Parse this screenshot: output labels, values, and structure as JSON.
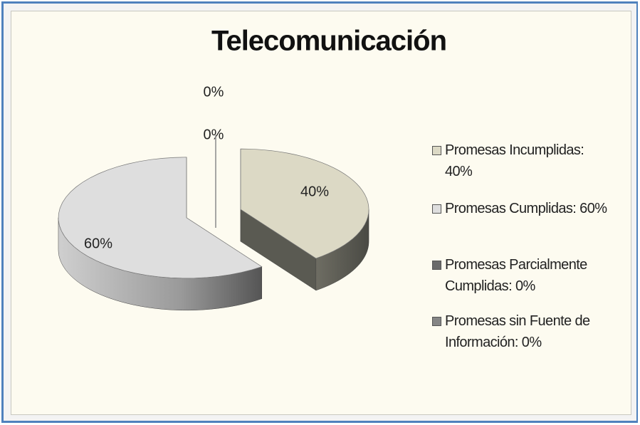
{
  "chart_data": {
    "type": "pie3d",
    "title": "Telecomunicación",
    "categories": [
      "Promesas Incumplidas",
      "Promesas Cumplidas",
      "Promesas Parcialmente Cumplidas",
      "Promesas sin Fuente de Información"
    ],
    "values": [
      40,
      60,
      0,
      0
    ],
    "value_labels": [
      "40%",
      "60%",
      "0%",
      "0%"
    ],
    "legend": [
      "Promesas Incumplidas: 40%",
      "Promesas Cumplidas: 60%",
      "Promesas Parcialmente Cumplidas: 0%",
      "Promesas sin Fuente de Información: 0%"
    ],
    "colors": [
      "#dcd9c5",
      "#dedede",
      "#6a6a6a",
      "#858585"
    ],
    "legend_position": "right"
  }
}
